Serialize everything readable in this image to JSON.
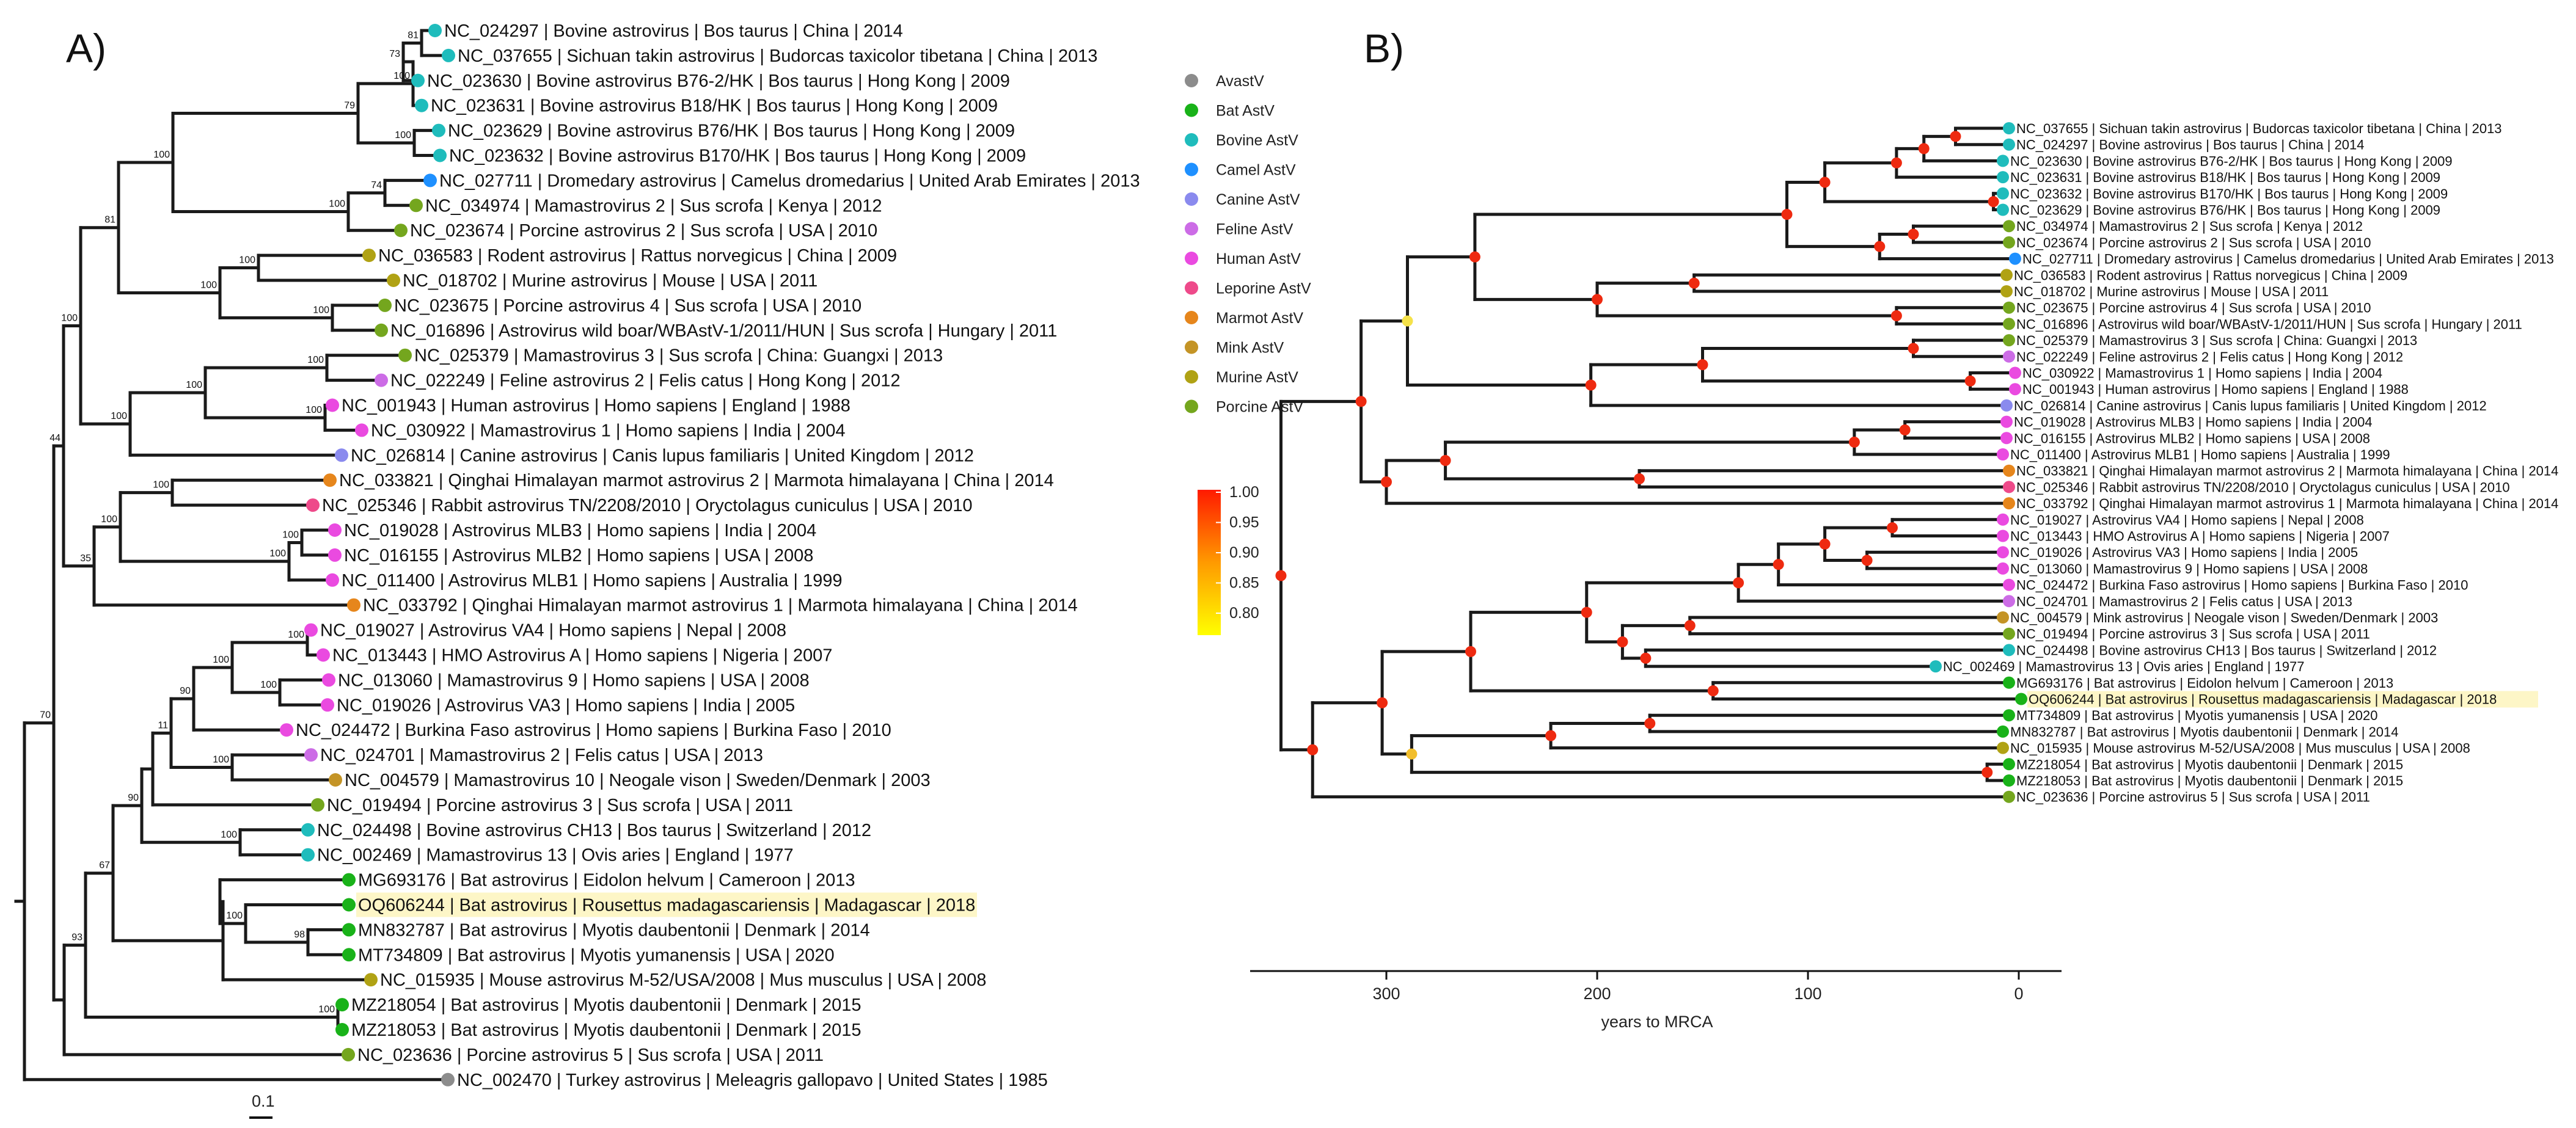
{
  "panels": {
    "a_label": "A)",
    "b_label": "B)"
  },
  "colors": {
    "AvastV": "#8c8c8c",
    "Bat AstV": "#19b219",
    "Bovine AstV": "#1fbcbc",
    "Camel AstV": "#1e90ff",
    "Canine AstV": "#8a8aee",
    "Feline AstV": "#cc6ce6",
    "Human AstV": "#ea4ae0",
    "Leporine AstV": "#ee4a8a",
    "Marmot AstV": "#e6861c",
    "Mink AstV": "#c49426",
    "Murine AstV": "#b0a214",
    "Porcine AstV": "#74a61e"
  },
  "legend": {
    "groups": [
      "AvastV",
      "Bat AstV",
      "Bovine AstV",
      "Camel AstV",
      "Canine AstV",
      "Feline AstV",
      "Human AstV",
      "Leporine AstV",
      "Marmot AstV",
      "Mink AstV",
      "Murine AstV",
      "Porcine AstV"
    ],
    "posterior_ticks": [
      "1.00",
      "0.95",
      "0.90",
      "0.85",
      "0.80"
    ],
    "posterior_scale": [
      1.0,
      0.95,
      0.9,
      0.85,
      0.8
    ],
    "posterior_colors": [
      "#ff1a00",
      "#ff9a00",
      "#ffff00"
    ]
  },
  "tree_a": {
    "scale_label": "0.1",
    "tips": [
      {
        "label": "NC_024297 | Bovine astrovirus | Bos taurus | China | 2014",
        "group": "Bovine AstV"
      },
      {
        "label": "NC_037655 | Sichuan takin astrovirus | Budorcas taxicolor tibetana | China | 2013",
        "group": "Bovine AstV"
      },
      {
        "label": "NC_023630 | Bovine astrovirus B76-2/HK | Bos taurus | Hong Kong | 2009",
        "group": "Bovine AstV"
      },
      {
        "label": "NC_023631 | Bovine astrovirus B18/HK | Bos taurus | Hong Kong | 2009",
        "group": "Bovine AstV"
      },
      {
        "label": "NC_023629 | Bovine astrovirus B76/HK | Bos taurus | Hong Kong | 2009",
        "group": "Bovine AstV"
      },
      {
        "label": "NC_023632 | Bovine astrovirus B170/HK | Bos taurus | Hong Kong | 2009",
        "group": "Bovine AstV"
      },
      {
        "label": "NC_027711 | Dromedary astrovirus | Camelus dromedarius | United Arab Emirates | 2013",
        "group": "Camel AstV"
      },
      {
        "label": "NC_034974 | Mamastrovirus 2 | Sus scrofa | Kenya | 2012",
        "group": "Porcine AstV"
      },
      {
        "label": "NC_023674 | Porcine astrovirus 2 | Sus scrofa | USA | 2010",
        "group": "Porcine AstV"
      },
      {
        "label": "NC_036583 | Rodent astrovirus | Rattus norvegicus | China | 2009",
        "group": "Murine AstV"
      },
      {
        "label": "NC_018702 | Murine astrovirus | Mouse | USA | 2011",
        "group": "Murine AstV"
      },
      {
        "label": "NC_023675 | Porcine astrovirus 4 | Sus scrofa | USA | 2010",
        "group": "Porcine AstV"
      },
      {
        "label": "NC_016896 | Astrovirus wild boar/WBAstV-1/2011/HUN | Sus scrofa | Hungary | 2011",
        "group": "Porcine AstV"
      },
      {
        "label": "NC_025379 | Mamastrovirus 3 | Sus scrofa | China: Guangxi | 2013",
        "group": "Porcine AstV"
      },
      {
        "label": "NC_022249 | Feline astrovirus 2 | Felis catus | Hong Kong | 2012",
        "group": "Feline AstV"
      },
      {
        "label": "NC_001943 | Human astrovirus | Homo sapiens | England | 1988",
        "group": "Human AstV"
      },
      {
        "label": "NC_030922 | Mamastrovirus 1 | Homo sapiens | India | 2004",
        "group": "Human AstV"
      },
      {
        "label": "NC_026814 | Canine astrovirus | Canis lupus familiaris | United Kingdom | 2012",
        "group": "Canine AstV"
      },
      {
        "label": "NC_033821 | Qinghai Himalayan marmot astrovirus 2 | Marmota himalayana | China | 2014",
        "group": "Marmot AstV"
      },
      {
        "label": "NC_025346 | Rabbit astrovirus TN/2208/2010 | Oryctolagus cuniculus | USA | 2010",
        "group": "Leporine AstV"
      },
      {
        "label": "NC_019028 | Astrovirus MLB3 | Homo sapiens | India | 2004",
        "group": "Human AstV"
      },
      {
        "label": "NC_016155 | Astrovirus MLB2 | Homo sapiens | USA | 2008",
        "group": "Human AstV"
      },
      {
        "label": "NC_011400 | Astrovirus MLB1 | Homo sapiens | Australia | 1999",
        "group": "Human AstV"
      },
      {
        "label": "NC_033792 | Qinghai Himalayan marmot astrovirus 1 | Marmota himalayana | China | 2014",
        "group": "Marmot AstV"
      },
      {
        "label": "NC_019027 | Astrovirus VA4 | Homo sapiens | Nepal | 2008",
        "group": "Human AstV"
      },
      {
        "label": "NC_013443 | HMO Astrovirus A | Homo sapiens | Nigeria | 2007",
        "group": "Human AstV"
      },
      {
        "label": "NC_013060 | Mamastrovirus 9 | Homo sapiens | USA | 2008",
        "group": "Human AstV"
      },
      {
        "label": "NC_019026 | Astrovirus VA3 | Homo sapiens | India | 2005",
        "group": "Human AstV"
      },
      {
        "label": "NC_024472 | Burkina Faso astrovirus | Homo sapiens | Burkina Faso | 2010",
        "group": "Human AstV"
      },
      {
        "label": "NC_024701 | Mamastrovirus 2 | Felis catus | USA | 2013",
        "group": "Feline AstV"
      },
      {
        "label": "NC_004579 | Mamastrovirus 10 | Neogale vison | Sweden/Denmark | 2003",
        "group": "Mink AstV"
      },
      {
        "label": "NC_019494 | Porcine astrovirus 3 | Sus scrofa | USA | 2011",
        "group": "Porcine AstV"
      },
      {
        "label": "NC_024498 | Bovine astrovirus CH13 | Bos taurus | Switzerland | 2012",
        "group": "Bovine AstV"
      },
      {
        "label": "NC_002469 | Mamastrovirus 13 | Ovis aries | England | 1977",
        "group": "Bovine AstV"
      },
      {
        "label": "MG693176 | Bat astrovirus | Eidolon helvum | Cameroon | 2013",
        "group": "Bat AstV"
      },
      {
        "label": "OQ606244 | Bat astrovirus | Rousettus madagascariensis | Madagascar | 2018",
        "group": "Bat AstV",
        "highlight": true
      },
      {
        "label": "MN832787 | Bat astrovirus | Myotis daubentonii | Denmark | 2014",
        "group": "Bat AstV"
      },
      {
        "label": "MT734809 | Bat astrovirus | Myotis yumanensis | USA | 2020",
        "group": "Bat AstV"
      },
      {
        "label": "NC_015935 | Mouse astrovirus M-52/USA/2008 | Mus musculus | USA | 2008",
        "group": "Murine AstV"
      },
      {
        "label": "MZ218054 | Bat astrovirus | Myotis daubentonii | Denmark | 2015",
        "group": "Bat AstV"
      },
      {
        "label": "MZ218053 | Bat astrovirus | Myotis daubentonii | Denmark | 2015",
        "group": "Bat AstV"
      },
      {
        "label": "NC_023636 | Porcine astrovirus 5 | Sus scrofa | USA | 2011",
        "group": "Porcine AstV"
      },
      {
        "label": "NC_002470 | Turkey astrovirus | Meleagris gallopavo | United States | 1985",
        "group": "AvastV"
      }
    ],
    "bootstrap": [
      "81",
      "73",
      "100",
      "79",
      "100",
      "74",
      "100",
      "100",
      "100",
      "100",
      "100",
      "100",
      "100",
      "100",
      "100",
      "81",
      "100",
      "44",
      "100",
      "100",
      "35",
      "100",
      "100",
      "100",
      "90",
      "100",
      "100",
      "11",
      "100",
      "100",
      "98",
      "100",
      "90",
      "67",
      "93",
      "100",
      "70"
    ]
  },
  "tree_b": {
    "axis_title": "years to MRCA",
    "axis_ticks": [
      300,
      200,
      100,
      0
    ],
    "axis_tick_labels": [
      "300",
      "200",
      "100",
      "0"
    ],
    "tips": [
      {
        "label": "NC_037655 | Sichuan takin astrovirus | Budorcas taxicolor tibetana | China | 2013",
        "group": "Bovine AstV"
      },
      {
        "label": "NC_024297 | Bovine astrovirus | Bos taurus | China | 2014",
        "group": "Bovine AstV"
      },
      {
        "label": "NC_023630 | Bovine astrovirus B76-2/HK | Bos taurus | Hong Kong | 2009",
        "group": "Bovine AstV"
      },
      {
        "label": "NC_023631 | Bovine astrovirus B18/HK | Bos taurus | Hong Kong | 2009",
        "group": "Bovine AstV"
      },
      {
        "label": "NC_023632 | Bovine astrovirus B170/HK | Bos taurus | Hong Kong | 2009",
        "group": "Bovine AstV"
      },
      {
        "label": "NC_023629 | Bovine astrovirus B76/HK | Bos taurus | Hong Kong | 2009",
        "group": "Bovine AstV"
      },
      {
        "label": "NC_034974 | Mamastrovirus 2 | Sus scrofa | Kenya | 2012",
        "group": "Porcine AstV"
      },
      {
        "label": "NC_023674 | Porcine astrovirus 2 | Sus scrofa | USA | 2010",
        "group": "Porcine AstV"
      },
      {
        "label": "NC_027711 | Dromedary astrovirus | Camelus dromedarius | United Arab Emirates | 2013",
        "group": "Camel AstV"
      },
      {
        "label": "NC_036583 | Rodent astrovirus | Rattus norvegicus | China | 2009",
        "group": "Murine AstV"
      },
      {
        "label": "NC_018702 | Murine astrovirus | Mouse | USA | 2011",
        "group": "Murine AstV"
      },
      {
        "label": "NC_023675 | Porcine astrovirus 4 | Sus scrofa | USA | 2010",
        "group": "Porcine AstV"
      },
      {
        "label": "NC_016896 | Astrovirus wild boar/WBAstV-1/2011/HUN | Sus scrofa | Hungary | 2011",
        "group": "Porcine AstV"
      },
      {
        "label": "NC_025379 | Mamastrovirus 3 | Sus scrofa | China: Guangxi | 2013",
        "group": "Porcine AstV"
      },
      {
        "label": "NC_022249 | Feline astrovirus 2 | Felis catus | Hong Kong | 2012",
        "group": "Feline AstV"
      },
      {
        "label": "NC_030922 | Mamastrovirus 1 | Homo sapiens | India | 2004",
        "group": "Human AstV"
      },
      {
        "label": "NC_001943 | Human astrovirus | Homo sapiens | England | 1988",
        "group": "Human AstV"
      },
      {
        "label": "NC_026814 | Canine astrovirus | Canis lupus familiaris | United Kingdom | 2012",
        "group": "Canine AstV"
      },
      {
        "label": "NC_019028 | Astrovirus MLB3 | Homo sapiens | India | 2004",
        "group": "Human AstV"
      },
      {
        "label": "NC_016155 | Astrovirus MLB2 | Homo sapiens | USA | 2008",
        "group": "Human AstV"
      },
      {
        "label": "NC_011400 | Astrovirus MLB1 | Homo sapiens | Australia | 1999",
        "group": "Human AstV"
      },
      {
        "label": "NC_033821 | Qinghai Himalayan marmot astrovirus 2 | Marmota himalayana | China | 2014",
        "group": "Marmot AstV"
      },
      {
        "label": "NC_025346 | Rabbit astrovirus TN/2208/2010 | Oryctolagus cuniculus | USA | 2010",
        "group": "Leporine AstV"
      },
      {
        "label": "NC_033792 | Qinghai Himalayan marmot astrovirus 1 | Marmota himalayana | China | 2014",
        "group": "Marmot AstV"
      },
      {
        "label": "NC_019027 | Astrovirus VA4 | Homo sapiens | Nepal | 2008",
        "group": "Human AstV"
      },
      {
        "label": "NC_013443 | HMO Astrovirus A | Homo sapiens | Nigeria | 2007",
        "group": "Human AstV"
      },
      {
        "label": "NC_019026 | Astrovirus VA3 | Homo sapiens | India | 2005",
        "group": "Human AstV"
      },
      {
        "label": "NC_013060 | Mamastrovirus 9 | Homo sapiens | USA | 2008",
        "group": "Human AstV"
      },
      {
        "label": "NC_024472 | Burkina Faso astrovirus | Homo sapiens | Burkina Faso | 2010",
        "group": "Human AstV"
      },
      {
        "label": "NC_024701 | Mamastrovirus 2 | Felis catus | USA | 2013",
        "group": "Feline AstV"
      },
      {
        "label": "NC_004579 | Mink astrovirus | Neogale vison | Sweden/Denmark | 2003",
        "group": "Mink AstV"
      },
      {
        "label": "NC_019494 | Porcine astrovirus 3 | Sus scrofa | USA | 2011",
        "group": "Porcine AstV"
      },
      {
        "label": "NC_024498 | Bovine astrovirus CH13 | Bos taurus | Switzerland | 2012",
        "group": "Bovine AstV"
      },
      {
        "label": "NC_002469 | Mamastrovirus 13 | Ovis aries | England | 1977",
        "group": "Bovine AstV"
      },
      {
        "label": "MG693176 | Bat astrovirus | Eidolon helvum | Cameroon | 2013",
        "group": "Bat AstV"
      },
      {
        "label": "OQ606244 | Bat astrovirus | Rousettus madagascariensis | Madagascar | 2018",
        "group": "Bat AstV",
        "highlight": true
      },
      {
        "label": "MT734809 | Bat astrovirus | Myotis yumanensis | USA | 2020",
        "group": "Bat AstV"
      },
      {
        "label": "MN832787 | Bat astrovirus | Myotis daubentonii | Denmark | 2014",
        "group": "Bat AstV"
      },
      {
        "label": "NC_015935 | Mouse astrovirus M-52/USA/2008 | Mus musculus | USA | 2008",
        "group": "Murine AstV"
      },
      {
        "label": "MZ218054 | Bat astrovirus | Myotis daubentonii | Denmark | 2015",
        "group": "Bat AstV"
      },
      {
        "label": "MZ218053 | Bat astrovirus | Myotis daubentonii | Denmark | 2015",
        "group": "Bat AstV"
      },
      {
        "label": "NC_023636 | Porcine astrovirus 5 | Sus scrofa | USA | 2011",
        "group": "Porcine AstV"
      }
    ]
  }
}
